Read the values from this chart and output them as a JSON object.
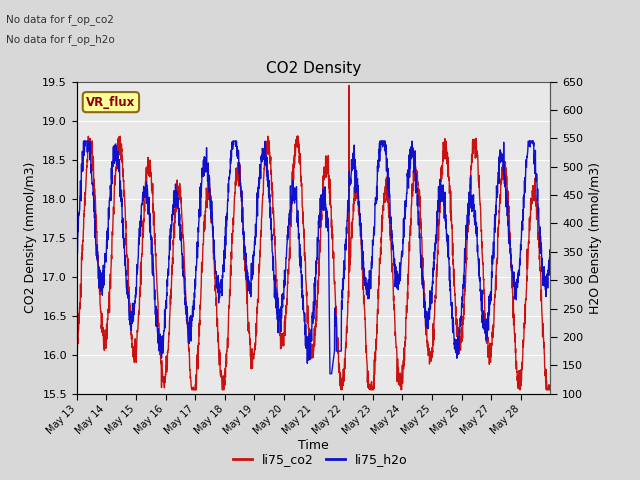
{
  "title": "CO2 Density",
  "xlabel": "Time",
  "ylabel_left": "CO2 Density (mmol/m3)",
  "ylabel_right": "H2O Density (mmol/m3)",
  "top_text_line1": "No data for f_op_co2",
  "top_text_line2": "No data for f_op_h2o",
  "vr_flux_label": "VR_flux",
  "legend_entries": [
    "li75_co2",
    "li75_h2o"
  ],
  "ylim_left": [
    15.5,
    19.5
  ],
  "ylim_right": [
    100,
    650
  ],
  "yticks_left": [
    15.5,
    16.0,
    16.5,
    17.0,
    17.5,
    18.0,
    18.5,
    19.0,
    19.5
  ],
  "yticks_right": [
    100,
    150,
    200,
    250,
    300,
    350,
    400,
    450,
    500,
    550,
    600,
    650
  ],
  "x_tick_labels": [
    "May 13",
    "May 14",
    "May 15",
    "May 16",
    "May 17",
    "May 18",
    "May 19",
    "May 20",
    "May 21",
    "May 22",
    "May 23",
    "May 24",
    "May 25",
    "May 26",
    "May 27",
    "May 28"
  ],
  "bg_color": "#d8d8d8",
  "plot_bg_color": "#e8e8e8",
  "line_color_co2": "#cc1111",
  "line_color_h2o": "#1111cc",
  "line_width": 1.0,
  "grid_color": "#ffffff",
  "figsize": [
    6.4,
    4.8
  ],
  "dpi": 100
}
